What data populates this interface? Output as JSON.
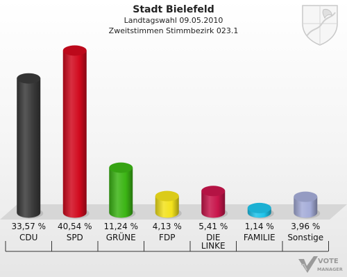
{
  "header": {
    "title": "Stadt Bielefeld",
    "subtitle": "Landtagswahl 09.05.2010",
    "subtitle2": "Zweitstimmen Stimmbezirk 023.1"
  },
  "chart_data": {
    "type": "bar",
    "title": "Stadt Bielefeld",
    "categories": [
      "CDU",
      "SPD",
      "GRÜNE",
      "FDP",
      "DIE LINKE",
      "FAMILIE",
      "Sonstige"
    ],
    "values": [
      33.57,
      40.54,
      11.24,
      4.13,
      5.41,
      1.14,
      3.96
    ],
    "value_labels": [
      "33,57 %",
      "40,54 %",
      "11,24 %",
      "4,13 %",
      "5,41 %",
      "1,14 %",
      "3,96 %"
    ],
    "colors": [
      "#3a3a3a",
      "#d10a1e",
      "#3cb515",
      "#f3e21c",
      "#c8154b",
      "#1fc3ea",
      "#a4acd8"
    ],
    "ylim": [
      0,
      40.54
    ]
  },
  "branding": {
    "logo_line1": "VOTE",
    "logo_line2": "MANAGER"
  }
}
